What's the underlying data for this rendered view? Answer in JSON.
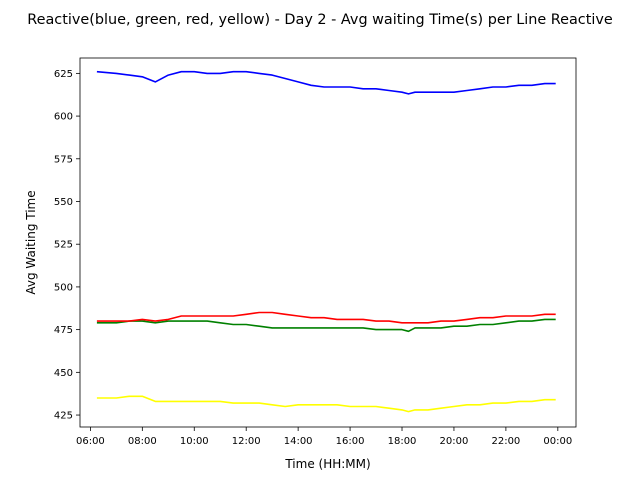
{
  "chart_data": {
    "type": "line",
    "title": "Reactive(blue, green, red, yellow) - Day 2 - Avg waiting Time(s) per Line Reactive",
    "xlabel": "Time (HH:MM)",
    "ylabel": "Avg Waiting Time",
    "x_ticks": [
      "06:00",
      "08:00",
      "10:00",
      "12:00",
      "14:00",
      "16:00",
      "18:00",
      "20:00",
      "22:00",
      "00:00"
    ],
    "y_ticks": [
      425,
      450,
      475,
      500,
      525,
      550,
      575,
      600,
      625
    ],
    "xlim": [
      "05:36",
      "00:42"
    ],
    "ylim": [
      418,
      634
    ],
    "grid": false,
    "x": [
      "06:15",
      "07:00",
      "07:30",
      "08:00",
      "08:30",
      "09:00",
      "09:30",
      "10:00",
      "10:30",
      "11:00",
      "11:30",
      "12:00",
      "12:30",
      "13:00",
      "13:30",
      "14:00",
      "14:30",
      "15:00",
      "15:30",
      "16:00",
      "16:30",
      "17:00",
      "17:30",
      "18:00",
      "18:15",
      "18:30",
      "19:00",
      "19:30",
      "20:00",
      "20:30",
      "21:00",
      "21:30",
      "22:00",
      "22:30",
      "23:00",
      "23:30",
      "23:55"
    ],
    "series": [
      {
        "color": "#0000ff",
        "values": [
          626,
          625,
          624,
          623,
          620,
          624,
          626,
          626,
          625,
          625,
          626,
          626,
          625,
          624,
          622,
          620,
          618,
          617,
          617,
          617,
          616,
          616,
          615,
          614,
          613,
          614,
          614,
          614,
          614,
          615,
          616,
          617,
          617,
          618,
          618,
          619,
          619
        ]
      },
      {
        "color": "#008000",
        "values": [
          479,
          479,
          480,
          480,
          479,
          480,
          480,
          480,
          480,
          479,
          478,
          478,
          477,
          476,
          476,
          476,
          476,
          476,
          476,
          476,
          476,
          475,
          475,
          475,
          474,
          476,
          476,
          476,
          477,
          477,
          478,
          478,
          479,
          480,
          480,
          481,
          481
        ]
      },
      {
        "color": "#ff0000",
        "values": [
          480,
          480,
          480,
          481,
          480,
          481,
          483,
          483,
          483,
          483,
          483,
          484,
          485,
          485,
          484,
          483,
          482,
          482,
          481,
          481,
          481,
          480,
          480,
          479,
          479,
          479,
          479,
          480,
          480,
          481,
          482,
          482,
          483,
          483,
          483,
          484,
          484
        ]
      },
      {
        "color": "#ffff00",
        "values": [
          435,
          435,
          436,
          436,
          433,
          433,
          433,
          433,
          433,
          433,
          432,
          432,
          432,
          431,
          430,
          431,
          431,
          431,
          431,
          430,
          430,
          430,
          429,
          428,
          427,
          428,
          428,
          429,
          430,
          431,
          431,
          432,
          432,
          433,
          433,
          434,
          434
        ]
      }
    ]
  }
}
